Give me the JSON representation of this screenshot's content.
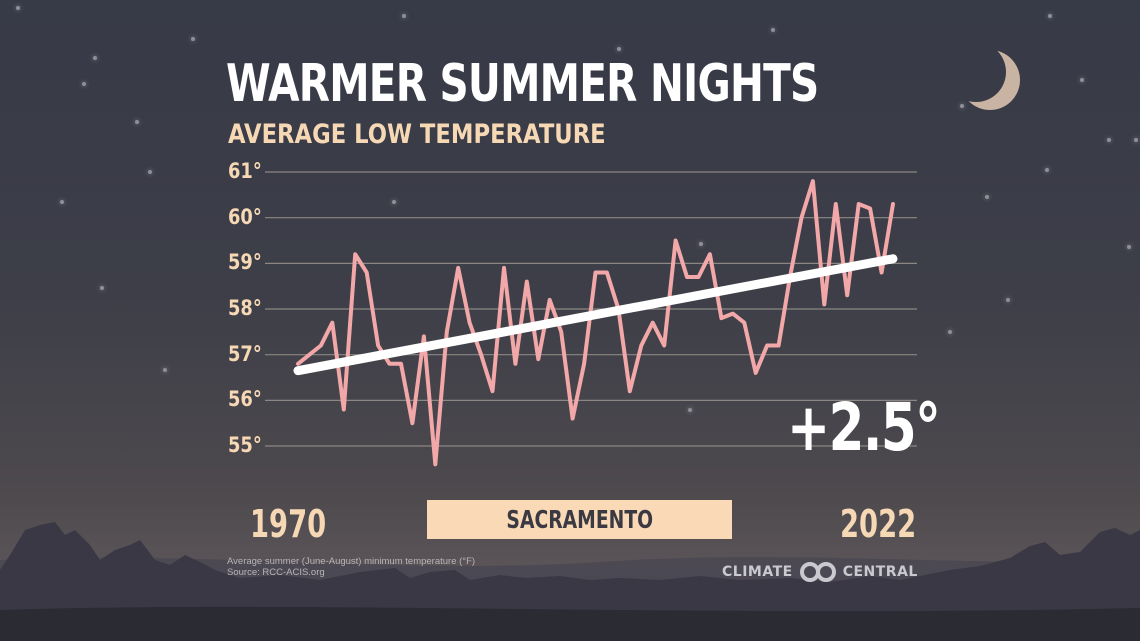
{
  "title": "WARMER SUMMER NIGHTS",
  "subtitle": "AVERAGE LOW TEMPERATURE",
  "change_label": "+2.5°",
  "city": "SACRAMENTO",
  "start_year_label": "1970",
  "end_year_label": "2022",
  "footnote": {
    "line1": "Average summer (June-August) minimum temperature (°F)",
    "line2": "Source: RCC-ACIS.org"
  },
  "brand": {
    "left": "CLIMATE",
    "right": "CENTRAL",
    "logo_icon": "interlocking-circles-icon"
  },
  "decor": {
    "moon_icon": "crescent-moon-icon",
    "background_scene": "night-sky-with-tree-silhouettes"
  },
  "colors": {
    "series_line": "#f2a7a8",
    "trend_line": "#ffffff",
    "tick_labels": "#f7d8b5",
    "city_box": "#f9d9b6",
    "gridline": "#8c8784"
  },
  "y_ticks": [
    "61°",
    "60°",
    "59°",
    "58°",
    "57°",
    "56°",
    "55°"
  ],
  "chart_data": {
    "type": "line",
    "title": "WARMER SUMMER NIGHTS",
    "subtitle": "AVERAGE LOW TEMPERATURE",
    "xlabel": "",
    "ylabel": "Average summer (June-August) minimum temperature (°F)",
    "ylim": [
      55,
      61
    ],
    "grid": true,
    "legend": "none",
    "annotations": [
      "+2.5°",
      "SACRAMENTO"
    ],
    "x": [
      1970,
      1971,
      1972,
      1973,
      1974,
      1975,
      1976,
      1977,
      1978,
      1979,
      1980,
      1981,
      1982,
      1983,
      1984,
      1985,
      1986,
      1987,
      1988,
      1989,
      1990,
      1991,
      1992,
      1993,
      1994,
      1995,
      1996,
      1997,
      1998,
      1999,
      2000,
      2001,
      2002,
      2003,
      2004,
      2005,
      2006,
      2007,
      2008,
      2009,
      2010,
      2011,
      2012,
      2013,
      2014,
      2015,
      2016,
      2017,
      2018,
      2019,
      2020,
      2021,
      2022
    ],
    "series": [
      {
        "name": "Average low temperature (°F)",
        "values": [
          56.8,
          57.0,
          57.2,
          57.7,
          55.8,
          59.2,
          58.8,
          57.2,
          56.8,
          56.8,
          55.5,
          57.4,
          54.6,
          57.5,
          58.9,
          57.7,
          57.0,
          56.2,
          58.9,
          56.8,
          58.6,
          56.9,
          58.2,
          57.5,
          55.6,
          56.8,
          58.8,
          58.8,
          58.0,
          56.2,
          57.2,
          57.7,
          57.2,
          59.5,
          58.7,
          58.7,
          59.2,
          57.8,
          57.9,
          57.7,
          56.6,
          57.2,
          57.2,
          58.7,
          60.0,
          60.8,
          58.1,
          60.3,
          58.3,
          60.3,
          60.2,
          58.8,
          60.3
        ]
      },
      {
        "name": "Trend",
        "values_start_end": [
          56.65,
          59.1
        ]
      }
    ],
    "yticks": [
      55,
      56,
      57,
      58,
      59,
      60,
      61
    ]
  }
}
